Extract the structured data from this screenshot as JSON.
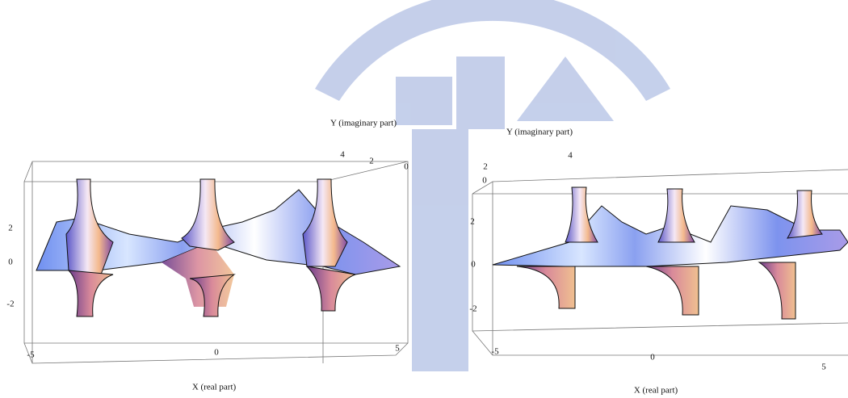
{
  "plots": [
    {
      "y_axis_label": "Y (imaginary part)",
      "x_axis_label": "X (real part)",
      "z_ticks": [
        2,
        0,
        -2
      ],
      "x_ticks": [
        -5,
        0,
        5
      ],
      "y_ticks": [
        4,
        2,
        0
      ]
    },
    {
      "y_axis_label": "Y (imaginary part)",
      "x_axis_label": "X (real part)",
      "z_ticks": [
        2,
        0,
        -2
      ],
      "x_ticks": [
        -5,
        0,
        5
      ],
      "y_ticks": [
        0,
        2,
        4
      ]
    }
  ]
}
